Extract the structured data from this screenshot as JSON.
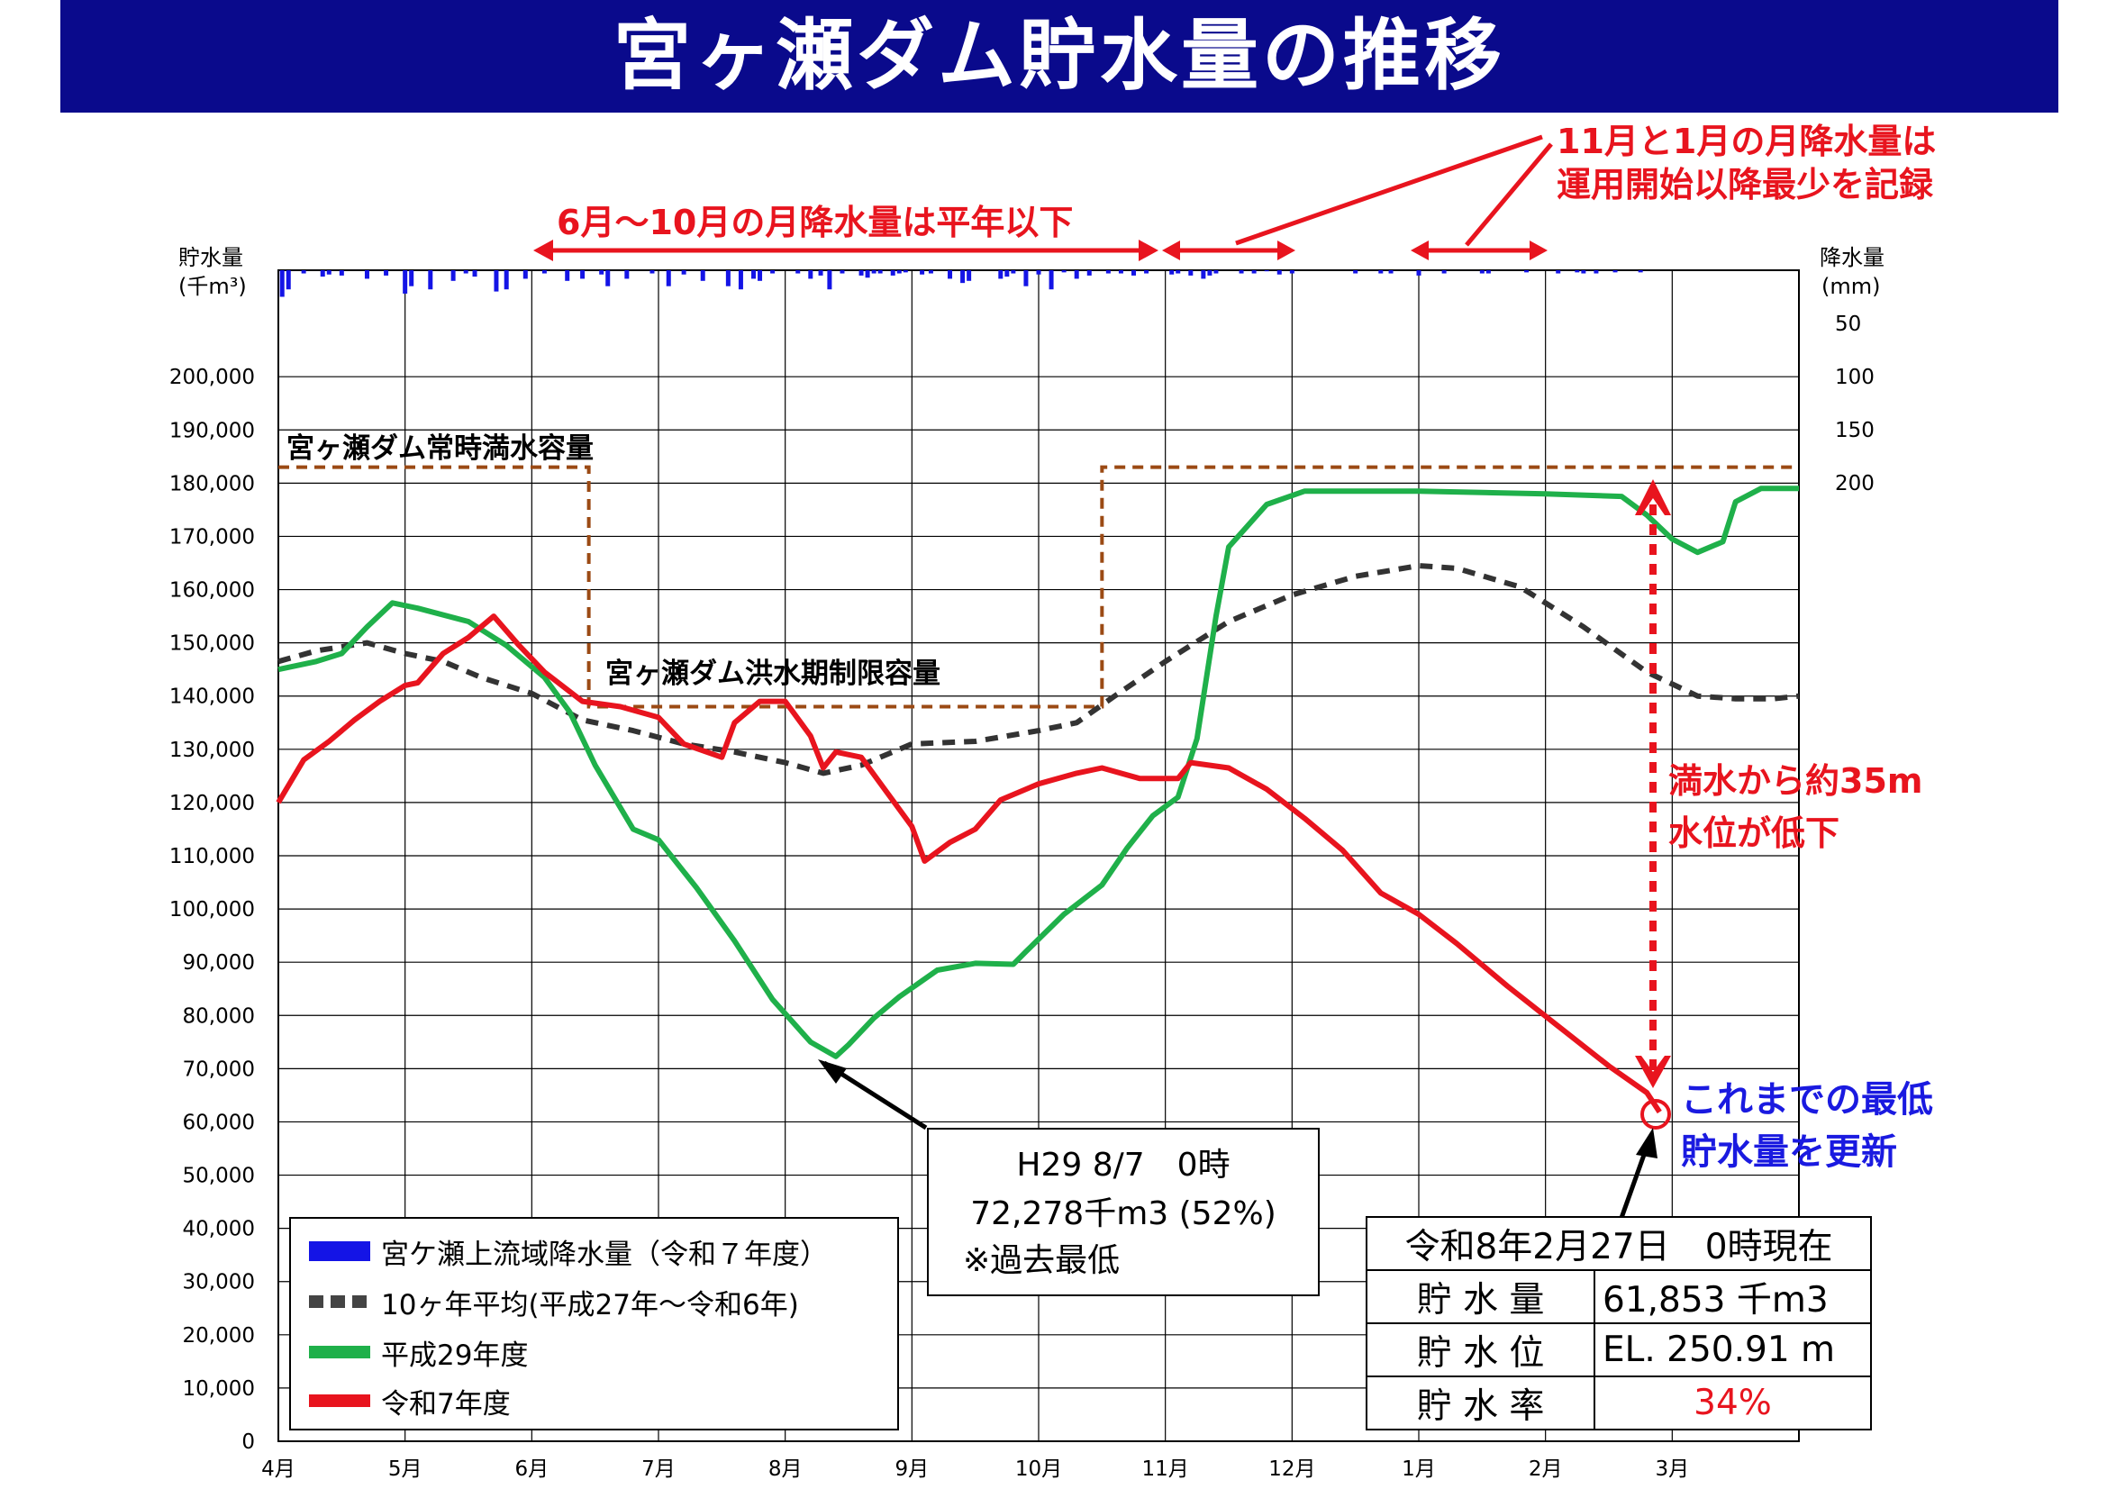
{
  "title": "宮ヶ瀬ダム貯水量の推移",
  "left_axis": {
    "label_line1": "貯水量",
    "label_line2": "(千m³)"
  },
  "right_axis": {
    "label_line1": "降水量",
    "label_line2": "(mm)"
  },
  "annotations": {
    "rain_jun_oct": "6月～10月の月降水量は平年以下",
    "rain_nov_jan_line1": "11月と1月の月降水量は",
    "rain_nov_jan_line2": "運用開始以降最少を記録",
    "full_capacity": "宮ヶ瀬ダム常時満水容量",
    "flood_limit": "宮ヶ瀬ダム洪水期制限容量",
    "drop_line1": "満水から約35m",
    "drop_line2": "水位が低下",
    "record_low_line1": "これまでの最低",
    "record_low_line2": "貯水量を更新"
  },
  "record_box": {
    "line1": "H29 8/7　0時",
    "line2": "72,278千m3 (52%)",
    "line3": "※過去最低"
  },
  "legend": [
    {
      "label": "宮ケ瀬上流域降水量（令和７年度）",
      "color": "#1414e6"
    },
    {
      "label": "10ヶ年平均(平成27年～令和6年)",
      "color": "#444444"
    },
    {
      "label": "平成29年度",
      "color": "#1fb04a"
    },
    {
      "label": "令和7年度",
      "color": "#e8141e"
    }
  ],
  "status": {
    "header": "令和8年2月27日　0時現在",
    "rows": [
      {
        "label": "貯 水 量",
        "value": "61,853 千m3"
      },
      {
        "label": "貯 水 位",
        "value": "EL. 250.91 m"
      },
      {
        "label": "貯 水 率",
        "value": "34%"
      }
    ]
  },
  "chart_data": {
    "type": "line",
    "x_labels": [
      "4月",
      "5月",
      "6月",
      "7月",
      "8月",
      "9月",
      "10月",
      "11月",
      "12月",
      "1月",
      "2月",
      "3月"
    ],
    "y_ticks": [
      "0",
      "10,000",
      "20,000",
      "30,000",
      "40,000",
      "50,000",
      "60,000",
      "70,000",
      "80,000",
      "90,000",
      "100,000",
      "110,000",
      "120,000",
      "130,000",
      "140,000",
      "150,000",
      "160,000",
      "170,000",
      "180,000",
      "190,000",
      "200,000"
    ],
    "y_range": [
      0,
      220000
    ],
    "rain_ticks": [
      "50",
      "100",
      "150",
      "200"
    ],
    "rain_range_mm": [
      0,
      200
    ],
    "x_unit": "month index (0 = start of 4月)",
    "series": [
      {
        "name": "10ヶ年平均(平成27年～令和6年)",
        "color": "#333333",
        "dash": true,
        "points": [
          [
            0,
            146500
          ],
          [
            0.3,
            148500
          ],
          [
            0.7,
            150000
          ],
          [
            1.0,
            148000
          ],
          [
            1.3,
            146500
          ],
          [
            1.6,
            143500
          ],
          [
            2.0,
            140500
          ],
          [
            2.4,
            135500
          ],
          [
            2.8,
            133500
          ],
          [
            3.2,
            131000
          ],
          [
            3.6,
            129500
          ],
          [
            4.0,
            127500
          ],
          [
            4.3,
            125500
          ],
          [
            4.6,
            127000
          ],
          [
            5.0,
            131000
          ],
          [
            5.5,
            131500
          ],
          [
            6.0,
            133500
          ],
          [
            6.3,
            135000
          ],
          [
            6.6,
            140000
          ],
          [
            7.0,
            146500
          ],
          [
            7.5,
            154000
          ],
          [
            8.0,
            159000
          ],
          [
            8.5,
            162500
          ],
          [
            9.0,
            164500
          ],
          [
            9.3,
            164000
          ],
          [
            9.8,
            160500
          ],
          [
            10.3,
            153000
          ],
          [
            10.8,
            144500
          ],
          [
            11.2,
            140000
          ],
          [
            11.5,
            139500
          ],
          [
            11.8,
            139500
          ],
          [
            12.0,
            140000
          ]
        ]
      },
      {
        "name": "平成29年度",
        "color": "#1fb04a",
        "dash": false,
        "points": [
          [
            0,
            145000
          ],
          [
            0.3,
            146500
          ],
          [
            0.5,
            148000
          ],
          [
            0.7,
            153000
          ],
          [
            0.9,
            157500
          ],
          [
            1.1,
            156500
          ],
          [
            1.5,
            154000
          ],
          [
            1.8,
            149500
          ],
          [
            2.1,
            143500
          ],
          [
            2.3,
            137000
          ],
          [
            2.5,
            127000
          ],
          [
            2.8,
            115000
          ],
          [
            3.0,
            113000
          ],
          [
            3.3,
            104000
          ],
          [
            3.6,
            94000
          ],
          [
            3.9,
            83000
          ],
          [
            4.2,
            75000
          ],
          [
            4.4,
            72300
          ],
          [
            4.5,
            74500
          ],
          [
            4.7,
            79500
          ],
          [
            4.9,
            83500
          ],
          [
            5.2,
            88500
          ],
          [
            5.5,
            89800
          ],
          [
            5.8,
            89600
          ],
          [
            5.9,
            92000
          ],
          [
            6.2,
            99000
          ],
          [
            6.5,
            104500
          ],
          [
            6.7,
            111500
          ],
          [
            6.9,
            117500
          ],
          [
            7.1,
            121000
          ],
          [
            7.25,
            132000
          ],
          [
            7.4,
            155000
          ],
          [
            7.5,
            168000
          ],
          [
            7.65,
            172000
          ],
          [
            7.8,
            176000
          ],
          [
            8.1,
            178500
          ],
          [
            9.0,
            178500
          ],
          [
            10.0,
            178000
          ],
          [
            10.6,
            177500
          ],
          [
            10.8,
            174000
          ],
          [
            11.0,
            169500
          ],
          [
            11.2,
            167000
          ],
          [
            11.4,
            169000
          ],
          [
            11.5,
            176500
          ],
          [
            11.7,
            179000
          ],
          [
            11.9,
            179000
          ],
          [
            12.0,
            179000
          ]
        ]
      },
      {
        "name": "令和7年度",
        "color": "#e8141e",
        "dash": false,
        "points": [
          [
            0,
            120000
          ],
          [
            0.2,
            128000
          ],
          [
            0.4,
            131500
          ],
          [
            0.6,
            135500
          ],
          [
            0.8,
            139000
          ],
          [
            1.0,
            142000
          ],
          [
            1.1,
            142500
          ],
          [
            1.3,
            148000
          ],
          [
            1.5,
            151000
          ],
          [
            1.7,
            155000
          ],
          [
            1.9,
            149500
          ],
          [
            2.1,
            144500
          ],
          [
            2.4,
            139000
          ],
          [
            2.7,
            138000
          ],
          [
            3.0,
            136000
          ],
          [
            3.2,
            131000
          ],
          [
            3.5,
            128500
          ],
          [
            3.6,
            135000
          ],
          [
            3.8,
            139000
          ],
          [
            4.0,
            139000
          ],
          [
            4.2,
            132500
          ],
          [
            4.3,
            126500
          ],
          [
            4.4,
            129500
          ],
          [
            4.6,
            128500
          ],
          [
            4.8,
            122000
          ],
          [
            5.0,
            115500
          ],
          [
            5.1,
            109000
          ],
          [
            5.3,
            112500
          ],
          [
            5.5,
            115000
          ],
          [
            5.7,
            120500
          ],
          [
            6.0,
            123500
          ],
          [
            6.3,
            125500
          ],
          [
            6.5,
            126500
          ],
          [
            6.8,
            124500
          ],
          [
            7.1,
            124500
          ],
          [
            7.2,
            127500
          ],
          [
            7.5,
            126500
          ],
          [
            7.8,
            122500
          ],
          [
            8.1,
            117000
          ],
          [
            8.4,
            111000
          ],
          [
            8.7,
            103000
          ],
          [
            9.0,
            99000
          ],
          [
            9.3,
            93500
          ],
          [
            9.7,
            85500
          ],
          [
            10.1,
            78000
          ],
          [
            10.5,
            70500
          ],
          [
            10.8,
            65500
          ],
          [
            10.9,
            61853
          ]
        ]
      }
    ],
    "reference_lines": [
      {
        "label": "宮ヶ瀬ダム常時満水容量",
        "value": 183000,
        "segments": [
          [
            0,
            2.45
          ],
          [
            6.5,
            12.0
          ]
        ]
      },
      {
        "label": "宮ヶ瀬ダム洪水期制限容量",
        "value": 138000,
        "segments": [
          [
            2.45,
            6.5
          ]
        ]
      }
    ],
    "rain_bars_mm": [
      [
        0.03,
        25
      ],
      [
        0.08,
        18
      ],
      [
        0.2,
        3
      ],
      [
        0.35,
        6
      ],
      [
        0.4,
        4
      ],
      [
        0.5,
        5
      ],
      [
        0.7,
        8
      ],
      [
        0.85,
        5
      ],
      [
        1.0,
        22
      ],
      [
        1.05,
        15
      ],
      [
        1.2,
        18
      ],
      [
        1.38,
        10
      ],
      [
        1.48,
        3
      ],
      [
        1.55,
        6
      ],
      [
        1.72,
        20
      ],
      [
        1.8,
        18
      ],
      [
        1.95,
        8
      ],
      [
        2.1,
        3
      ],
      [
        2.28,
        10
      ],
      [
        2.4,
        8
      ],
      [
        2.55,
        4
      ],
      [
        2.6,
        15
      ],
      [
        2.75,
        8
      ],
      [
        2.95,
        3
      ],
      [
        3.08,
        15
      ],
      [
        3.2,
        4
      ],
      [
        3.35,
        10
      ],
      [
        3.55,
        15
      ],
      [
        3.65,
        18
      ],
      [
        3.75,
        8
      ],
      [
        3.8,
        10
      ],
      [
        3.9,
        3
      ],
      [
        4.1,
        3
      ],
      [
        4.2,
        8
      ],
      [
        4.28,
        5
      ],
      [
        4.35,
        18
      ],
      [
        4.45,
        3
      ],
      [
        4.6,
        5
      ],
      [
        4.65,
        7
      ],
      [
        4.7,
        3
      ],
      [
        4.75,
        3
      ],
      [
        4.85,
        5
      ],
      [
        4.9,
        3
      ],
      [
        4.95,
        2
      ],
      [
        5.08,
        4
      ],
      [
        5.15,
        3
      ],
      [
        5.3,
        8
      ],
      [
        5.4,
        12
      ],
      [
        5.45,
        10
      ],
      [
        5.7,
        8
      ],
      [
        5.75,
        6
      ],
      [
        5.8,
        3
      ],
      [
        5.9,
        15
      ],
      [
        6.0,
        4
      ],
      [
        6.1,
        18
      ],
      [
        6.2,
        2
      ],
      [
        6.3,
        8
      ],
      [
        6.4,
        5
      ],
      [
        6.55,
        3
      ],
      [
        6.65,
        3
      ],
      [
        6.75,
        5
      ],
      [
        6.85,
        3
      ],
      [
        7.05,
        4
      ],
      [
        7.1,
        3
      ],
      [
        7.2,
        5
      ],
      [
        7.3,
        8
      ],
      [
        7.35,
        5
      ],
      [
        7.4,
        3
      ],
      [
        7.6,
        3
      ],
      [
        7.7,
        3
      ],
      [
        7.8,
        1
      ],
      [
        7.9,
        4
      ],
      [
        8.0,
        3
      ],
      [
        8.5,
        3
      ],
      [
        8.7,
        3
      ],
      [
        8.78,
        3
      ],
      [
        9.0,
        5
      ],
      [
        9.2,
        3
      ],
      [
        9.5,
        3
      ],
      [
        9.55,
        3
      ],
      [
        9.85,
        2
      ],
      [
        10.1,
        3
      ],
      [
        10.25,
        2
      ],
      [
        10.3,
        3
      ],
      [
        10.4,
        3
      ],
      [
        10.55,
        2
      ],
      [
        10.75,
        2
      ]
    ]
  }
}
